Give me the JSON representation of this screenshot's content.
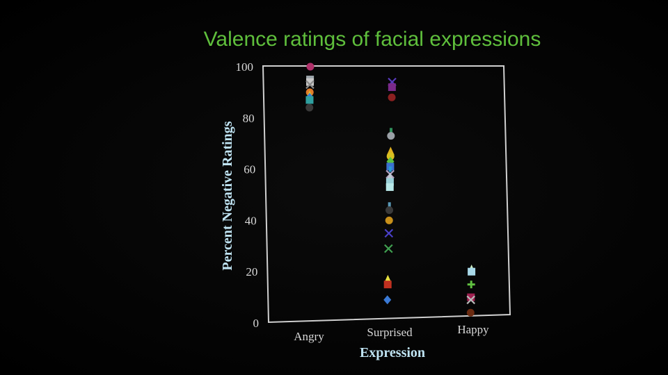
{
  "chart_data": {
    "type": "scatter",
    "title": "Valence ratings of facial expressions",
    "xlabel": "Expression",
    "ylabel": "Percent Negative Ratings",
    "categories": [
      "Angry",
      "Surprised",
      "Happy"
    ],
    "ylim": [
      0,
      100
    ],
    "yticks": [
      "0",
      "20",
      "40",
      "60",
      "80",
      "100"
    ],
    "grid": false,
    "legend": "none",
    "points": [
      {
        "category": "Angry",
        "y": 100,
        "marker": "circle",
        "color": "#b0306a"
      },
      {
        "category": "Angry",
        "y": 95,
        "marker": "square",
        "color": "#9aa3a8"
      },
      {
        "category": "Angry",
        "y": 94,
        "marker": "square",
        "color": "#c8c8c8"
      },
      {
        "category": "Angry",
        "y": 93,
        "marker": "x",
        "color": "#8a8a8a"
      },
      {
        "category": "Angry",
        "y": 90,
        "marker": "circle",
        "color": "#e07a2a"
      },
      {
        "category": "Angry",
        "y": 89,
        "marker": "triangle",
        "color": "#d9c030"
      },
      {
        "category": "Angry",
        "y": 88,
        "marker": "diamond",
        "color": "#3a7ad6"
      },
      {
        "category": "Angry",
        "y": 87,
        "marker": "square",
        "color": "#2fa0a0"
      },
      {
        "category": "Angry",
        "y": 84,
        "marker": "circle",
        "color": "#3a3a3a"
      },
      {
        "category": "Surprised",
        "y": 94,
        "marker": "x",
        "color": "#5a3ac0"
      },
      {
        "category": "Surprised",
        "y": 92,
        "marker": "square",
        "color": "#7a2a8a"
      },
      {
        "category": "Surprised",
        "y": 88,
        "marker": "circle",
        "color": "#8a2020"
      },
      {
        "category": "Surprised",
        "y": 75,
        "marker": "dash",
        "color": "#2f8f5a"
      },
      {
        "category": "Surprised",
        "y": 73,
        "marker": "circle",
        "color": "#9aa0a6"
      },
      {
        "category": "Surprised",
        "y": 67,
        "marker": "triangle",
        "color": "#e0b020"
      },
      {
        "category": "Surprised",
        "y": 65,
        "marker": "circle",
        "color": "#d8c020"
      },
      {
        "category": "Surprised",
        "y": 63,
        "marker": "diamond",
        "color": "#5ac040"
      },
      {
        "category": "Surprised",
        "y": 61,
        "marker": "square",
        "color": "#3a70d0"
      },
      {
        "category": "Surprised",
        "y": 60,
        "marker": "dash",
        "color": "#2a9ad0"
      },
      {
        "category": "Surprised",
        "y": 58,
        "marker": "x",
        "color": "#b0a0c0"
      },
      {
        "category": "Surprised",
        "y": 57,
        "marker": "triangle",
        "color": "#c0c8d0"
      },
      {
        "category": "Surprised",
        "y": 55,
        "marker": "square",
        "color": "#9ad0d8"
      },
      {
        "category": "Surprised",
        "y": 53,
        "marker": "square",
        "color": "#b8e8e8"
      },
      {
        "category": "Surprised",
        "y": 46,
        "marker": "dash",
        "color": "#5a9ab8"
      },
      {
        "category": "Surprised",
        "y": 44,
        "marker": "circle",
        "color": "#3a3a3a"
      },
      {
        "category": "Surprised",
        "y": 40,
        "marker": "circle",
        "color": "#c8901a"
      },
      {
        "category": "Surprised",
        "y": 35,
        "marker": "x",
        "color": "#4a40c8"
      },
      {
        "category": "Surprised",
        "y": 29,
        "marker": "x",
        "color": "#40a050"
      },
      {
        "category": "Surprised",
        "y": 17,
        "marker": "triangle",
        "color": "#e8e040"
      },
      {
        "category": "Surprised",
        "y": 15,
        "marker": "square",
        "color": "#c03020"
      },
      {
        "category": "Surprised",
        "y": 9,
        "marker": "diamond",
        "color": "#3a7ad6"
      },
      {
        "category": "Happy",
        "y": 21,
        "marker": "triangle",
        "color": "#c8e8c0"
      },
      {
        "category": "Happy",
        "y": 20,
        "marker": "square",
        "color": "#a8d8e8"
      },
      {
        "category": "Happy",
        "y": 15,
        "marker": "plus",
        "color": "#60c040"
      },
      {
        "category": "Happy",
        "y": 10,
        "marker": "square",
        "color": "#a02050"
      },
      {
        "category": "Happy",
        "y": 9,
        "marker": "x",
        "color": "#b8b8b8"
      },
      {
        "category": "Happy",
        "y": 4,
        "marker": "circle",
        "color": "#6a2a10"
      }
    ]
  },
  "colors": {
    "title": "#5fbf3c",
    "axis_labels": "#bfe3f2",
    "tick_labels": "#d8d8d8",
    "frame": "#d0d0d0",
    "background": "#050505"
  }
}
